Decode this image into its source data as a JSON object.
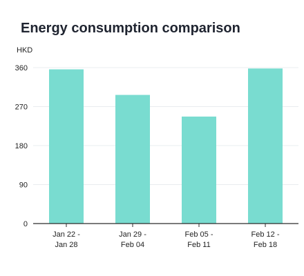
{
  "chart_data": {
    "type": "bar",
    "title": "Energy consumption comparison",
    "ylabel": "HKD",
    "categories": [
      [
        "Jan 22 -",
        "Jan 28"
      ],
      [
        "Jan 29 -",
        "Feb 04"
      ],
      [
        "Feb 05 -",
        "Feb 11"
      ],
      [
        "Feb 12 -",
        "Feb 18"
      ]
    ],
    "values": [
      356,
      297,
      247,
      358
    ],
    "yticks": [
      0,
      90,
      180,
      270,
      360
    ],
    "ylim": [
      0,
      360
    ],
    "grid": true,
    "bar_color": "#79dcd0",
    "grid_color": "#e9ecef",
    "axis_color": "#2b2b2b"
  }
}
